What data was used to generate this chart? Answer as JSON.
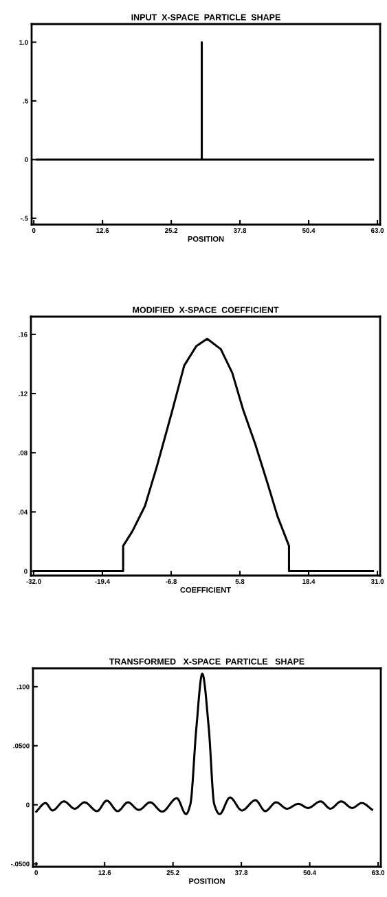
{
  "chart_data": [
    {
      "type": "line",
      "title": "INPUT  X-SPACE  PARTICLE  SHAPE",
      "xlabel": "POSITION",
      "xlim": [
        -0.4,
        63.5
      ],
      "ylim": [
        -0.554,
        1.155
      ],
      "xticks": [
        0,
        12.6,
        25.2,
        37.8,
        50.4,
        {
          "value": 63.0,
          "label": "63.0"
        }
      ],
      "yticks": [
        {
          "value": 1.0,
          "label": "1.0"
        },
        {
          "value": 0.5,
          "label": ".5"
        },
        0,
        {
          "value": -0.5,
          "label": "-.5"
        }
      ],
      "grid": false,
      "legend": false,
      "marker": "none",
      "line_style": "solid",
      "series": [
        {
          "color": "#000000",
          "x": [
            0.6,
            30.8,
            30.8,
            30.8,
            62.2
          ],
          "values": [
            0,
            0,
            1.0,
            0,
            0
          ]
        }
      ]
    },
    {
      "type": "line",
      "title": "MODIFIED  X-SPACE  COEFFICIENT",
      "xlabel": "COEFFICIENT",
      "xlim": [
        -32.5,
        31.5
      ],
      "ylim": [
        -0.003,
        0.172
      ],
      "xticks": [
        {
          "value": -32.0,
          "label": "-32.0"
        },
        -19.4,
        -6.8,
        5.8,
        18.4,
        {
          "value": 31.0,
          "label": "31.0"
        }
      ],
      "yticks": [
        0,
        {
          "value": 0.04,
          "label": ".04"
        },
        {
          "value": 0.08,
          "label": ".08"
        },
        {
          "value": 0.12,
          "label": ".12"
        },
        {
          "value": 0.16,
          "label": ".16"
        }
      ],
      "grid": false,
      "legend": false,
      "marker": "none",
      "line_style": "solid",
      "series": [
        {
          "color": "#000000",
          "x": [
            -32.0,
            -15.6,
            -15.6,
            -13.9,
            -11.6,
            -9.4,
            -6.7,
            -4.4,
            -2.2,
            -0.2,
            2.3,
            4.4,
            6.4,
            8.6,
            10.9,
            12.7,
            14.8,
            14.8,
            30.2
          ],
          "values": [
            0,
            0,
            0.017,
            0.027,
            0.044,
            0.071,
            0.107,
            0.139,
            0.152,
            0.157,
            0.15,
            0.134,
            0.109,
            0.086,
            0.059,
            0.037,
            0.017,
            0,
            0
          ]
        }
      ]
    },
    {
      "type": "line",
      "title": "TRANSFORMED   X-SPACE  PARTICLE   SHAPE",
      "xlabel": "POSITION",
      "xlim": [
        -0.6,
        63.5
      ],
      "ylim": [
        -0.0525,
        0.1156
      ],
      "xticks": [
        0,
        12.6,
        25.2,
        37.8,
        50.4,
        {
          "value": 63.0,
          "label": "63.0"
        }
      ],
      "yticks": [
        {
          "value": 0.1,
          "label": ".100"
        },
        {
          "value": 0.05,
          "label": ".0500"
        },
        0,
        {
          "value": -0.05,
          "label": "-.0500"
        }
      ],
      "grid": false,
      "legend": false,
      "marker": "none",
      "line_style": "solid",
      "series": [
        {
          "color": "#000000",
          "x": [
            0,
            1.7,
            3.0,
            5.1,
            7.1,
            8.9,
            11.2,
            13.0,
            15.0,
            16.9,
            18.9,
            21.0,
            23.2,
            25.9,
            27.6,
            28.4,
            29.5,
            30.6,
            31.8,
            32.8,
            33.8,
            35.7,
            37.9,
            40.4,
            42.2,
            44.2,
            46.2,
            48.3,
            50.1,
            52.4,
            54.2,
            56.2,
            58.2,
            60.0,
            61.9
          ],
          "values": [
            -0.0058,
            0.0015,
            -0.0048,
            0.0029,
            -0.0033,
            0.0021,
            -0.0054,
            0.0035,
            -0.0054,
            0.0021,
            -0.0044,
            0.0021,
            -0.0058,
            0.0056,
            -0.0079,
            0.0004,
            0.0647,
            0.111,
            0.0647,
            0.0004,
            -0.0079,
            0.0062,
            -0.0048,
            0.0039,
            -0.0054,
            0.0021,
            -0.0033,
            0.0008,
            -0.0027,
            0.0029,
            -0.0033,
            0.0029,
            -0.0027,
            0.0015,
            -0.0041
          ]
        }
      ]
    }
  ]
}
